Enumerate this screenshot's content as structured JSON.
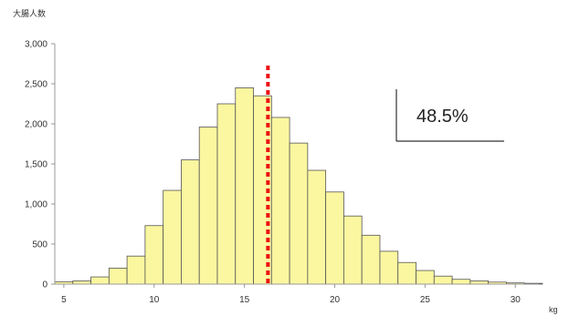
{
  "chart_data": {
    "type": "bar",
    "title": "",
    "ylabel": "大腸人数",
    "xlabel": "kg",
    "bins_start": [
      4.5,
      5.5,
      6.5,
      7.5,
      8.5,
      9.5,
      10.5,
      11.5,
      12.5,
      13.5,
      14.5,
      15.5,
      16.5,
      17.5,
      18.5,
      19.5,
      20.5,
      21.5,
      22.5,
      23.5,
      24.5,
      25.5,
      26.5,
      27.5,
      28.5,
      29.5,
      30.5
    ],
    "bin_width": 1,
    "values": [
      30,
      40,
      90,
      200,
      350,
      730,
      1170,
      1550,
      1960,
      2250,
      2450,
      2350,
      2080,
      1760,
      1420,
      1150,
      850,
      610,
      410,
      270,
      170,
      100,
      60,
      40,
      25,
      15,
      10
    ],
    "xlim": [
      4.5,
      31.3
    ],
    "ylim": [
      0,
      3000
    ],
    "yticks": [
      0,
      500,
      1000,
      1500,
      2000,
      2500,
      3000
    ],
    "ytick_labels": [
      "0",
      "500",
      "1,000",
      "1,500",
      "2,000",
      "2,500",
      "3,000"
    ],
    "xticks": [
      5,
      10,
      15,
      20,
      25,
      30
    ],
    "xtick_labels": [
      "5",
      "10",
      "15",
      "20",
      "25",
      "30"
    ],
    "marker_line": {
      "x": 16.3,
      "color": "#ee1111",
      "style": "dotted"
    },
    "bar_color": "#fbf7a0",
    "bar_edge_color": "#555555",
    "grid": false,
    "annotation": "48.5%"
  }
}
